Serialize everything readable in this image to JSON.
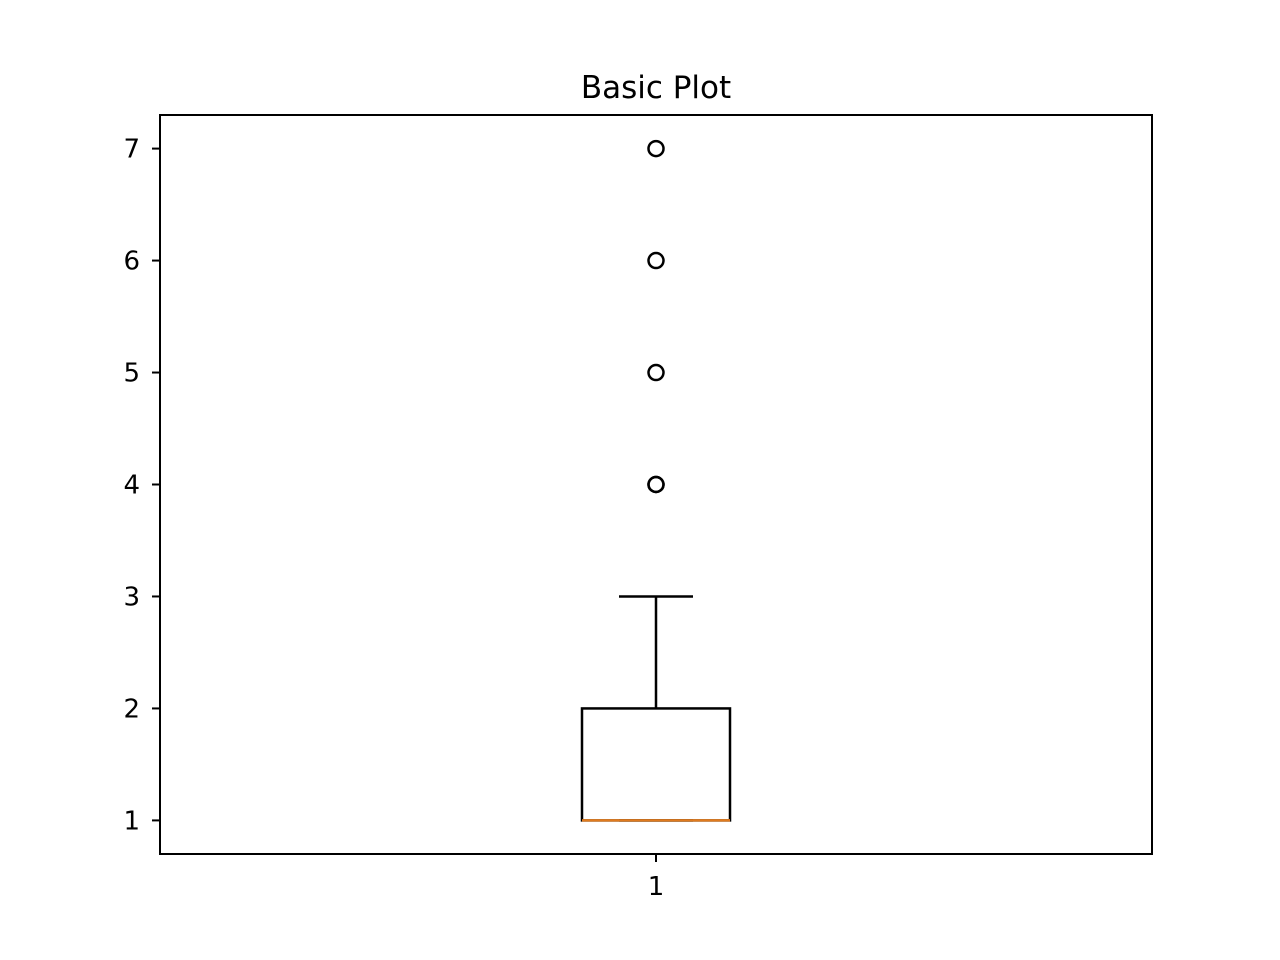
{
  "chart_data": {
    "type": "box",
    "title": "Basic Plot",
    "xlabel": "",
    "ylabel": "",
    "categories": [
      "1"
    ],
    "x_ticks": [
      "1"
    ],
    "y_ticks": [
      "1",
      "2",
      "3",
      "4",
      "5",
      "6",
      "7"
    ],
    "ylim": [
      0.7,
      7.3
    ],
    "grid": false,
    "boxes": [
      {
        "label": "1",
        "whisker_low": 1,
        "q1": 1,
        "median": 1,
        "q3": 2,
        "whisker_high": 3,
        "outliers": [
          4,
          4,
          5,
          6,
          7
        ]
      }
    ],
    "colors": {
      "box": "#000000",
      "median": "#e07b1f",
      "outlier": "#000000"
    }
  }
}
